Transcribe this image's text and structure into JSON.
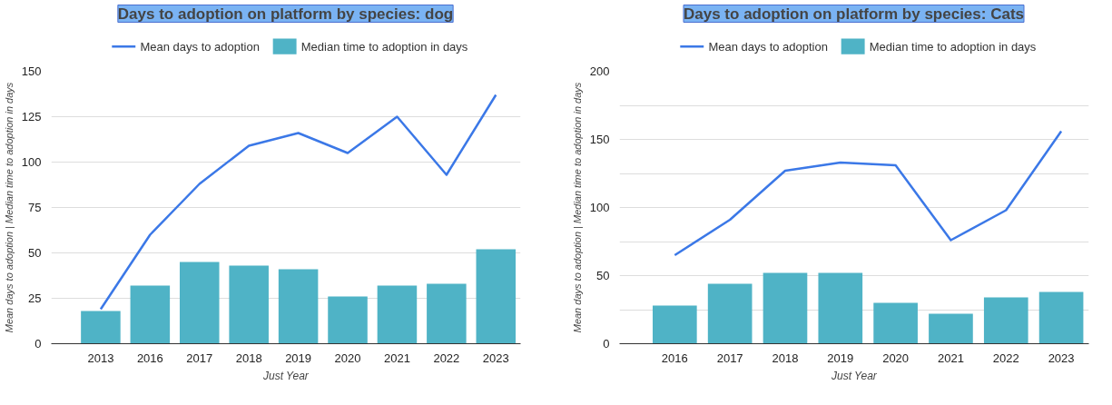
{
  "chart_data": [
    {
      "type": "bar",
      "title": "Days to adoption on platform by species: dog",
      "xlabel": "Just Year",
      "ylabel": "Mean days to adoption | Median time to adoption in days",
      "categories": [
        "2013",
        "2016",
        "2017",
        "2018",
        "2019",
        "2020",
        "2021",
        "2022",
        "2023"
      ],
      "series": [
        {
          "name": "Mean days to adoption",
          "type": "line",
          "color": "#3b78e7",
          "values": [
            19,
            60,
            88,
            109,
            116,
            105,
            125,
            93,
            137
          ]
        },
        {
          "name": "Median time to adoption in days",
          "color": "#4fb3c6",
          "values": [
            18,
            32,
            45,
            43,
            41,
            26,
            32,
            33,
            52
          ]
        }
      ],
      "ylim": [
        0,
        150
      ],
      "yticks": [
        0,
        25,
        50,
        75,
        100,
        125,
        150
      ],
      "grid": "y",
      "legend": "top"
    },
    {
      "type": "bar",
      "title": "Days to adoption on platform by species: Cats",
      "xlabel": "Just Year",
      "ylabel": "Mean days to adoption | Median time to adoption in days",
      "categories": [
        "2016",
        "2017",
        "2018",
        "2019",
        "2020",
        "2021",
        "2022",
        "2023"
      ],
      "series": [
        {
          "name": "Mean days to adoption",
          "type": "line",
          "color": "#3b78e7",
          "values": [
            65,
            91,
            127,
            133,
            131,
            76,
            98,
            156
          ]
        },
        {
          "name": "Median time to adoption in days",
          "color": "#4fb3c6",
          "values": [
            28,
            44,
            52,
            52,
            30,
            22,
            34,
            38
          ]
        }
      ],
      "ylim": [
        0,
        200
      ],
      "yticks": [
        0,
        {
          "value": 25,
          "label": null
        },
        50,
        {
          "value": 75,
          "label": null
        },
        100,
        {
          "value": 125,
          "label": null
        },
        150,
        {
          "value": 175,
          "label": null
        },
        200
      ],
      "grid": "y",
      "legend": "top"
    }
  ]
}
